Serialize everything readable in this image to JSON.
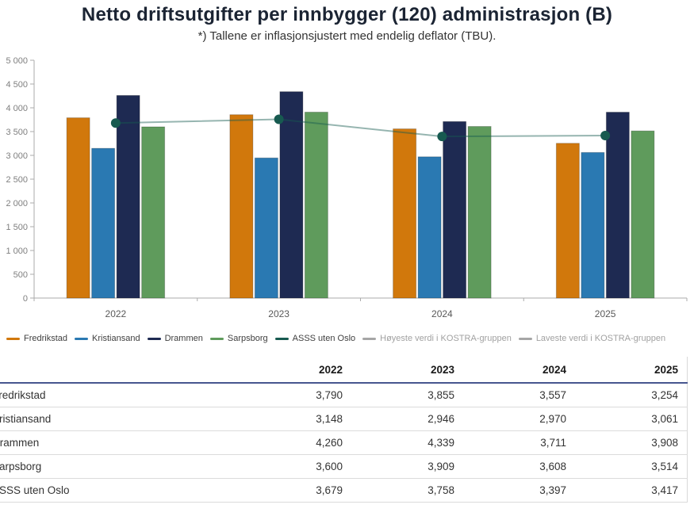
{
  "header": {
    "title": "Netto driftsutgifter per innbygger (120) administrasjon (B)",
    "subtitle": "*) Tallene er inflasjonsjustert med endelig deflator (TBU)."
  },
  "chart_data": {
    "type": "bar",
    "categories": [
      "2022",
      "2023",
      "2024",
      "2025"
    ],
    "series": [
      {
        "name": "Fredrikstad",
        "kind": "bar",
        "color": "#d1780c",
        "values": [
          3790,
          3855,
          3557,
          3254
        ]
      },
      {
        "name": "Kristiansand",
        "kind": "bar",
        "color": "#2a79b2",
        "values": [
          3148,
          2946,
          2970,
          3061
        ]
      },
      {
        "name": "Drammen",
        "kind": "bar",
        "color": "#1e2a52",
        "values": [
          4260,
          4339,
          3711,
          3908
        ]
      },
      {
        "name": "Sarpsborg",
        "kind": "bar",
        "color": "#5f9b5c",
        "values": [
          3600,
          3909,
          3608,
          3514
        ]
      },
      {
        "name": "ASSS uten Oslo",
        "kind": "line",
        "color": "#175a50",
        "values": [
          3679,
          3758,
          3397,
          3417
        ]
      },
      {
        "name": "Høyeste verdi i KOSTRA-gruppen",
        "kind": "hidden",
        "color": "#a6a6a6",
        "values": []
      },
      {
        "name": "Laveste verdi i KOSTRA-gruppen",
        "kind": "hidden",
        "color": "#a6a6a6",
        "values": []
      }
    ],
    "ylim": [
      0,
      5000
    ],
    "ytick_step": 500,
    "grid": false,
    "legend_position": "bottom",
    "axis_color": "#ababab",
    "ytick_label_color": "#7f7f7f",
    "xtick_label_color": "#595959"
  },
  "table": {
    "columns": [
      "2022",
      "2023",
      "2024",
      "2025"
    ],
    "rows": [
      {
        "label": "Fredrikstad",
        "values": [
          "3,790",
          "3,855",
          "3,557",
          "3,254"
        ]
      },
      {
        "label": "Kristiansand",
        "values": [
          "3,148",
          "2,946",
          "2,970",
          "3,061"
        ]
      },
      {
        "label": "Drammen",
        "values": [
          "4,260",
          "4,339",
          "3,711",
          "3,908"
        ]
      },
      {
        "label": "Sarpsborg",
        "values": [
          "3,600",
          "3,909",
          "3,608",
          "3,514"
        ]
      },
      {
        "label": "ASSS uten Oslo",
        "values": [
          "3,679",
          "3,758",
          "3,397",
          "3,417"
        ]
      }
    ]
  }
}
